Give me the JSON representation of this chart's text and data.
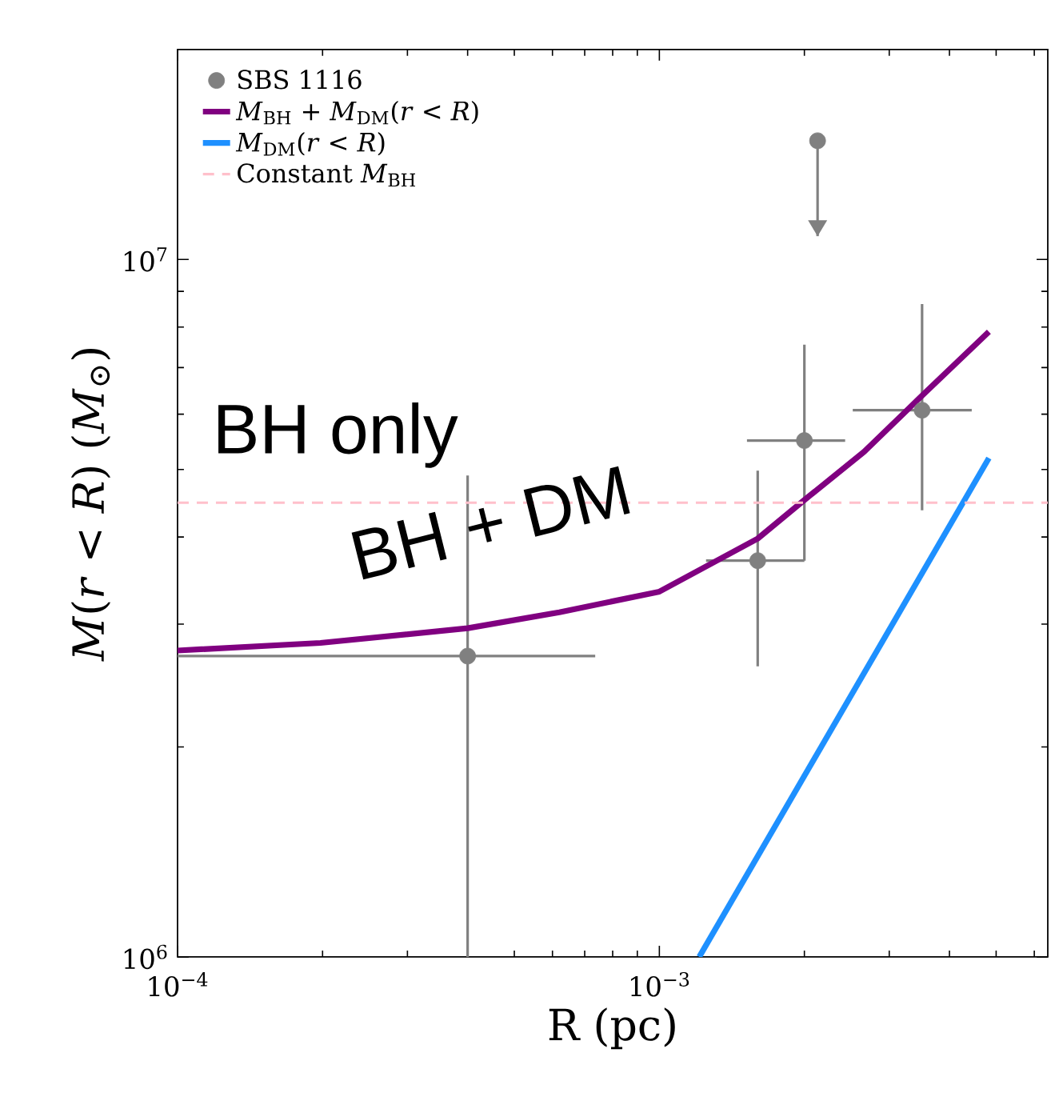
{
  "chart_data": {
    "type": "scatter",
    "xlabel": "R (pc)",
    "ylabel": "*M*(*r* < *R*) (*M*$_{⊙}$)",
    "log": "xy",
    "xlim": [
      0.0001,
      0.0064
    ],
    "ylim": [
      1000000,
      20000000
    ],
    "xticks": [
      {
        "value": 0.0001,
        "label": "10$^{−4}$"
      },
      {
        "value": 0.001,
        "label": "10$^{−3}$"
      }
    ],
    "yticks": [
      {
        "value": 1000000,
        "label": "10$^{6}$"
      },
      {
        "value": 10000000,
        "label": "10$^{7}$"
      }
    ],
    "legend": "top left",
    "series": [
      {
        "name": "SBS 1116",
        "color": "#808080",
        "x": [
          0.0004,
          0.0016,
          0.002,
          0.00351,
          0.00213
        ],
        "values": [
          2700000,
          3700000,
          5500000,
          6080000,
          14800000
        ],
        "errors": [
          [
            1000000,
            4900000
          ],
          [
            2610000,
            4980000
          ],
          [
            3700000,
            7550000
          ],
          [
            4370000,
            8630000
          ],
          [
            10800000,
            14800000
          ]
        ],
        "xerrors": [
          [
            0.0001,
            0.000736
          ],
          [
            0.00125,
            0.002
          ],
          [
            0.00152,
            0.00243
          ],
          [
            0.00252,
            0.00445
          ],
          null
        ]
      },
      {
        "type": "line",
        "name": "*M*$_{BH}$ + *M*$_{DM}$(*r* < *R*)",
        "color": "#800080",
        "x": [
          0.0001,
          0.000198,
          0.0004,
          0.00062,
          0.001,
          0.0016,
          0.002,
          0.00266,
          0.00351,
          0.00483
        ],
        "values": [
          2750000,
          2820000,
          2960000,
          3120000,
          3340000,
          3980000,
          4520000,
          5300000,
          6380000,
          7880000
        ]
      },
      {
        "type": "line",
        "name": "*M*$_{DM}$(*r* < *R*)",
        "color": "#1e90ff",
        "x": [
          0.00121,
          0.00483
        ],
        "values": [
          1000000,
          5190000
        ]
      }
    ],
    "ref_lines": [
      {
        "axis": "y",
        "value": 4480000,
        "label": "Constant *M*$_{BH}$",
        "color": "#ffc0cb",
        "line_style": "dashed"
      }
    ],
    "annotations": [
      "BH only",
      "BH + DM"
    ]
  }
}
